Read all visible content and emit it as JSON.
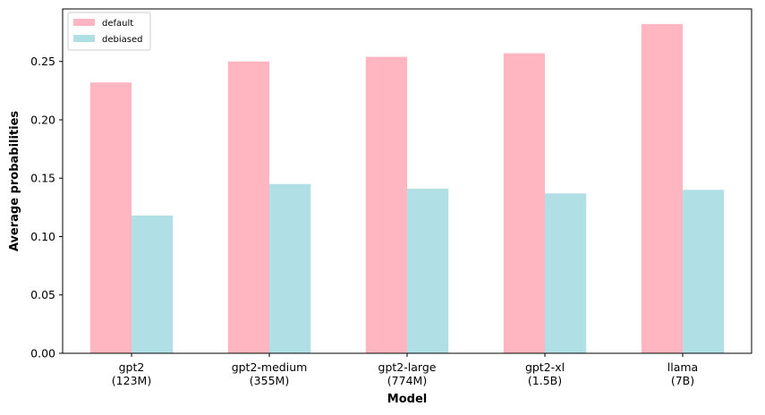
{
  "chart_data": {
    "type": "bar",
    "categories": [
      {
        "line1": "gpt2",
        "line2": "(123M)"
      },
      {
        "line1": "gpt2-medium",
        "line2": "(355M)"
      },
      {
        "line1": "gpt2-large",
        "line2": "(774M)"
      },
      {
        "line1": "gpt2-xl",
        "line2": "(1.5B)"
      },
      {
        "line1": "llama",
        "line2": "(7B)"
      }
    ],
    "series": [
      {
        "name": "default",
        "color": "#ffb6c1",
        "values": [
          0.232,
          0.25,
          0.254,
          0.257,
          0.282
        ]
      },
      {
        "name": "debiased",
        "color": "#b0e0e6",
        "values": [
          0.118,
          0.145,
          0.141,
          0.137,
          0.14
        ]
      }
    ],
    "xlabel": "Model",
    "ylabel": "Average probabilities",
    "ylim": [
      0,
      0.295
    ],
    "yticks": [
      "0.00",
      "0.05",
      "0.10",
      "0.15",
      "0.20",
      "0.25"
    ],
    "legend_position": "top-left",
    "grid": false
  }
}
